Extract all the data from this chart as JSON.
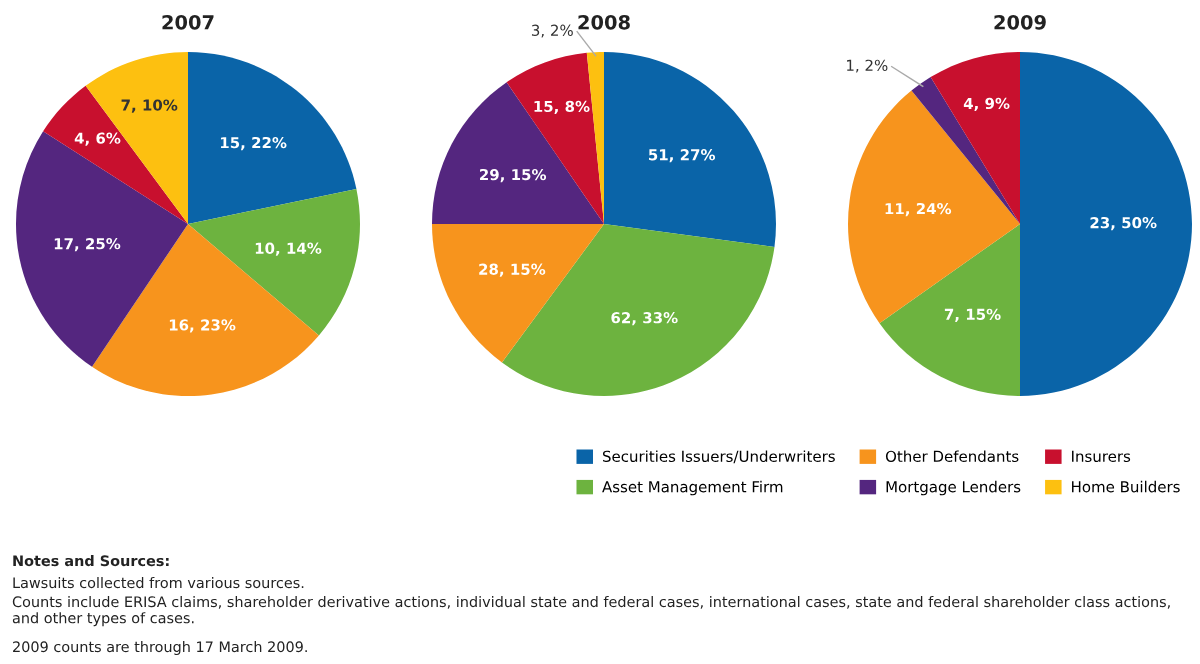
{
  "chart_data": [
    {
      "type": "pie",
      "title": "2007",
      "categories": [
        "Securities Issuers/Underwriters",
        "Asset Management Firm",
        "Other Defendants",
        "Mortgage Lenders",
        "Insurers",
        "Home Builders"
      ],
      "values": [
        15,
        10,
        16,
        17,
        4,
        7
      ],
      "value_labels": [
        "15, 22%",
        "10, 14%",
        "16, 23%",
        "17, 25%",
        "4, 6%",
        "7, 10%"
      ],
      "colors": [
        "#0a64a8",
        "#6db33f",
        "#f7941d",
        "#54267f",
        "#c8102e",
        "#fdc010"
      ],
      "legend": "bottom right",
      "annotations": [
        "Notes and Sources:",
        "Lawsuits collected from various sources.",
        "Counts include ERISA claims, shareholder derivative actions, individual state and federal cases, international cases, state and federal shareholder class actions, and other types of cases.",
        "2009 counts are through 17 March 2009."
      ]
    },
    {
      "type": "pie",
      "title": "2008",
      "categories": [
        null,
        null,
        null,
        null,
        null,
        null
      ],
      "values": [
        51,
        62,
        28,
        29,
        15,
        3
      ],
      "value_labels": [
        "51, 27%",
        "62, 33%",
        "28, 15%",
        "29, 15%",
        "15, 8%",
        "3, 2%"
      ],
      "colors": [
        "#0a64a8",
        "#6db33f",
        "#f7941d",
        "#54267f",
        "#c8102e",
        "#fdc010"
      ]
    },
    {
      "type": "pie",
      "title": "2009",
      "categories": [
        null,
        null,
        null,
        null,
        null
      ],
      "values": [
        23,
        7,
        11,
        1,
        4
      ],
      "value_labels": [
        "23, 50%",
        "7, 15%",
        "11, 24%",
        "1, 2%",
        "4, 9%"
      ],
      "colors": [
        "#0a64a8",
        "#6db33f",
        "#f7941d",
        "#54267f",
        "#c8102e"
      ]
    }
  ]
}
